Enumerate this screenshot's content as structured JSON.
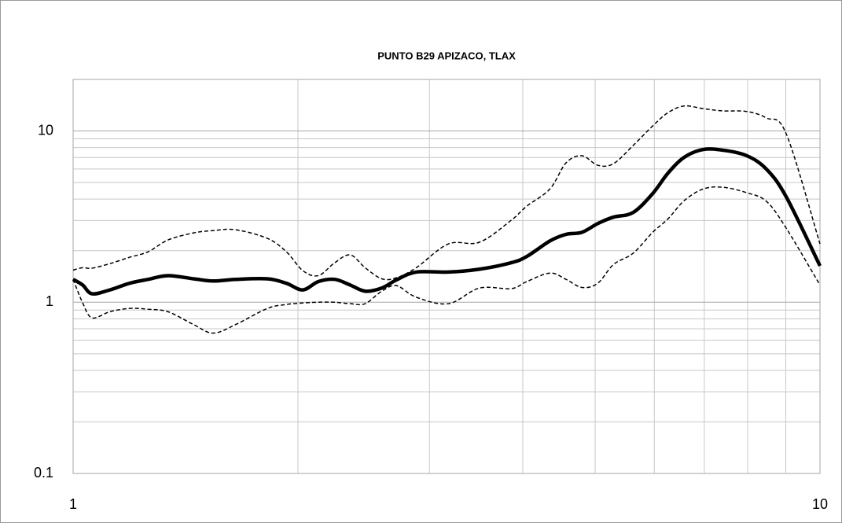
{
  "chart_data": {
    "type": "line",
    "title": "PUNTO B29 APIZACO, TLAX",
    "log_x": true,
    "log_y": true,
    "grid": true,
    "xlim": [
      1,
      10
    ],
    "xticks": [
      1,
      10
    ],
    "xminor": [
      2,
      3,
      4,
      5,
      6,
      7,
      8,
      9
    ],
    "ylim": [
      0.1,
      20
    ],
    "yticks": [
      0.1,
      1,
      10
    ],
    "yminor": [
      0.2,
      0.3,
      0.4,
      0.5,
      0.6,
      0.7,
      0.8,
      0.9,
      2,
      3,
      4,
      5,
      6,
      7,
      8,
      9
    ],
    "x": [
      1,
      1.03,
      1.06,
      1.12,
      1.19,
      1.26,
      1.34,
      1.45,
      1.54,
      1.65,
      1.82,
      1.93,
      2.03,
      2.13,
      2.24,
      2.35,
      2.46,
      2.59,
      2.71,
      2.88,
      3.18,
      3.5,
      3.86,
      4.05,
      4.35,
      4.57,
      4.8,
      5.04,
      5.29,
      5.62,
      5.97,
      6.26,
      6.58,
      6.98,
      7.42,
      7.98,
      8.48,
      9.01,
      10
    ],
    "series": [
      {
        "color": "#000000",
        "style": "solid",
        "values": [
          1.36,
          1.26,
          1.12,
          1.18,
          1.29,
          1.36,
          1.43,
          1.37,
          1.33,
          1.36,
          1.37,
          1.29,
          1.18,
          1.32,
          1.36,
          1.26,
          1.16,
          1.21,
          1.35,
          1.5,
          1.5,
          1.56,
          1.7,
          1.85,
          2.28,
          2.49,
          2.56,
          2.88,
          3.14,
          3.34,
          4.31,
          5.68,
          7.02,
          7.8,
          7.72,
          7.17,
          5.98,
          4.13,
          1.63
        ]
      },
      {
        "color": "#000000",
        "style": "dashed",
        "values": [
          1.54,
          1.59,
          1.58,
          1.68,
          1.83,
          1.97,
          2.31,
          2.54,
          2.62,
          2.65,
          2.36,
          1.97,
          1.53,
          1.43,
          1.7,
          1.89,
          1.59,
          1.37,
          1.39,
          1.59,
          2.19,
          2.24,
          3.01,
          3.64,
          4.59,
          6.51,
          7.17,
          6.31,
          6.44,
          8.22,
          10.7,
          12.8,
          14.0,
          13.5,
          13.1,
          13.0,
          11.9,
          9.64,
          2.19
        ]
      },
      {
        "color": "#000000",
        "style": "dashed",
        "values": [
          1.36,
          0.99,
          0.81,
          0.88,
          0.92,
          0.91,
          0.88,
          0.74,
          0.66,
          0.74,
          0.92,
          0.97,
          0.99,
          1.0,
          1.0,
          0.98,
          0.98,
          1.16,
          1.25,
          1.07,
          0.98,
          1.21,
          1.2,
          1.32,
          1.48,
          1.36,
          1.22,
          1.29,
          1.66,
          1.93,
          2.56,
          3.07,
          3.92,
          4.59,
          4.69,
          4.36,
          3.88,
          2.71,
          1.26
        ]
      }
    ]
  }
}
